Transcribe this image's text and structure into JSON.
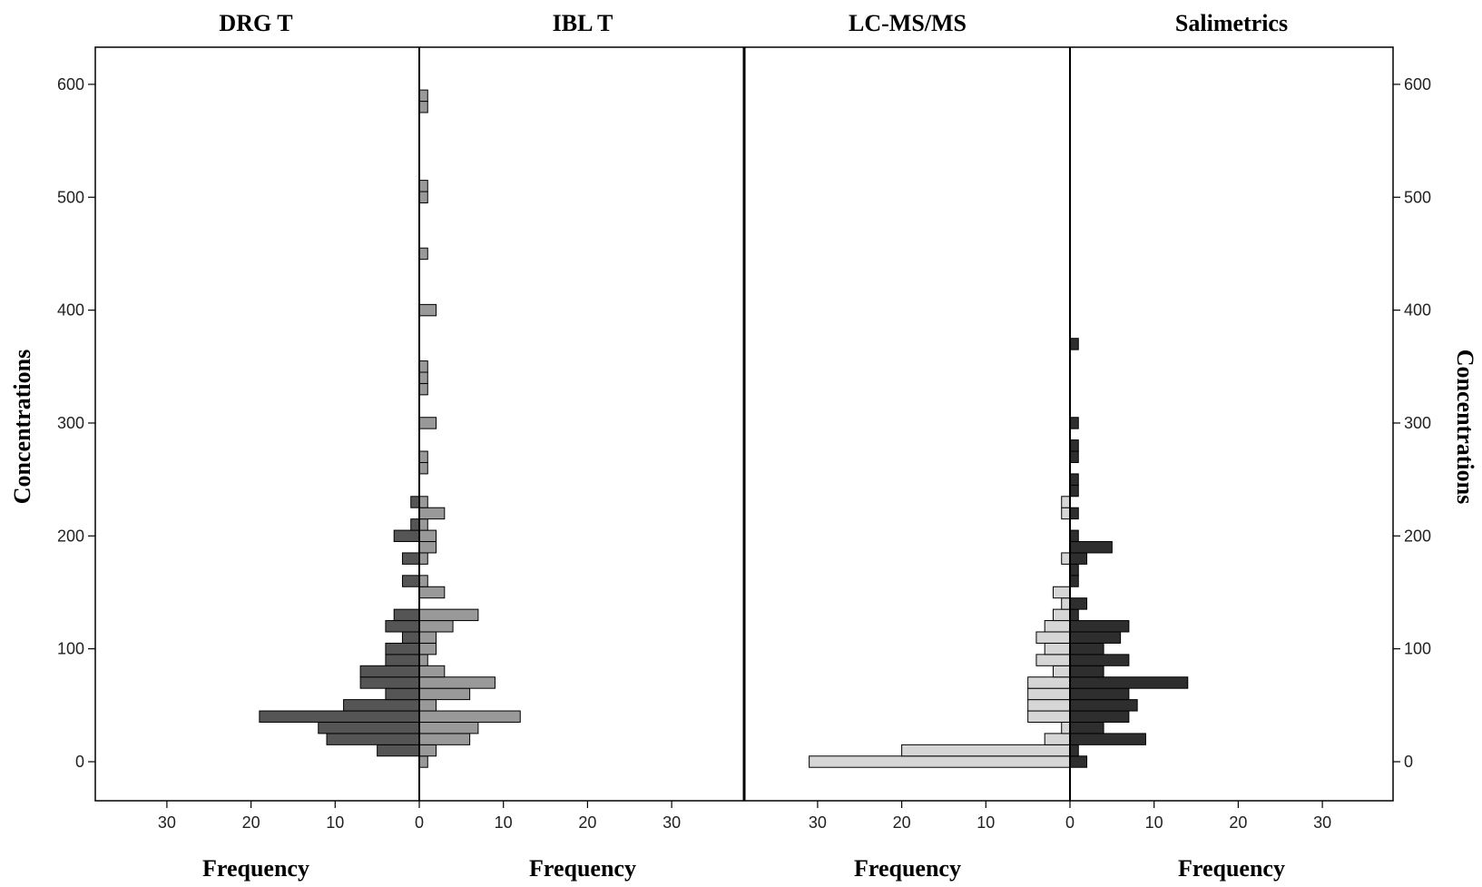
{
  "chart_data": {
    "type": "bar",
    "subtype": "back-to-back horizontal histogram (population pyramid)",
    "y_axis": {
      "label": "Concentrations",
      "ticks": [
        0,
        100,
        200,
        300,
        400,
        500,
        600
      ],
      "ylim": [
        -33,
        633
      ]
    },
    "x_axis": {
      "label": "Frequency",
      "ticks": [
        30,
        20,
        10,
        0,
        10,
        20,
        30
      ],
      "xlim_each_side": [
        0,
        39
      ]
    },
    "grid": false,
    "legend": "none",
    "bin_width": 10,
    "colors": {
      "DRG T": "#555555",
      "IBL T": "#999999",
      "LC-MS/MS": "#d6d6d6",
      "Salimetrics": "#2e2e2e",
      "outline": "#000000"
    },
    "panels": [
      {
        "left": {
          "name": "DRG T",
          "bins": [
            {
              "y": 0,
              "freq": 0
            },
            {
              "y": 10,
              "freq": 5
            },
            {
              "y": 20,
              "freq": 11
            },
            {
              "y": 30,
              "freq": 12
            },
            {
              "y": 40,
              "freq": 19
            },
            {
              "y": 50,
              "freq": 9
            },
            {
              "y": 60,
              "freq": 4
            },
            {
              "y": 70,
              "freq": 7
            },
            {
              "y": 80,
              "freq": 7
            },
            {
              "y": 90,
              "freq": 4
            },
            {
              "y": 100,
              "freq": 4
            },
            {
              "y": 110,
              "freq": 2
            },
            {
              "y": 120,
              "freq": 4
            },
            {
              "y": 130,
              "freq": 3
            },
            {
              "y": 160,
              "freq": 2
            },
            {
              "y": 180,
              "freq": 2
            },
            {
              "y": 200,
              "freq": 3
            },
            {
              "y": 210,
              "freq": 1
            },
            {
              "y": 230,
              "freq": 1
            }
          ]
        },
        "right": {
          "name": "IBL T",
          "bins": [
            {
              "y": 0,
              "freq": 1
            },
            {
              "y": 10,
              "freq": 2
            },
            {
              "y": 20,
              "freq": 6
            },
            {
              "y": 30,
              "freq": 7
            },
            {
              "y": 40,
              "freq": 12
            },
            {
              "y": 50,
              "freq": 2
            },
            {
              "y": 60,
              "freq": 6
            },
            {
              "y": 70,
              "freq": 9
            },
            {
              "y": 80,
              "freq": 3
            },
            {
              "y": 90,
              "freq": 1
            },
            {
              "y": 100,
              "freq": 2
            },
            {
              "y": 110,
              "freq": 2
            },
            {
              "y": 120,
              "freq": 4
            },
            {
              "y": 130,
              "freq": 7
            },
            {
              "y": 150,
              "freq": 3
            },
            {
              "y": 160,
              "freq": 1
            },
            {
              "y": 180,
              "freq": 1
            },
            {
              "y": 190,
              "freq": 2
            },
            {
              "y": 200,
              "freq": 2
            },
            {
              "y": 210,
              "freq": 1
            },
            {
              "y": 220,
              "freq": 3
            },
            {
              "y": 230,
              "freq": 1
            },
            {
              "y": 260,
              "freq": 1
            },
            {
              "y": 270,
              "freq": 1
            },
            {
              "y": 300,
              "freq": 2
            },
            {
              "y": 330,
              "freq": 1
            },
            {
              "y": 340,
              "freq": 1
            },
            {
              "y": 350,
              "freq": 1
            },
            {
              "y": 400,
              "freq": 2
            },
            {
              "y": 450,
              "freq": 1
            },
            {
              "y": 500,
              "freq": 1
            },
            {
              "y": 510,
              "freq": 1
            },
            {
              "y": 580,
              "freq": 1
            },
            {
              "y": 590,
              "freq": 1
            }
          ]
        }
      },
      {
        "left": {
          "name": "LC-MS/MS",
          "bins": [
            {
              "y": 0,
              "freq": 31
            },
            {
              "y": 10,
              "freq": 20
            },
            {
              "y": 20,
              "freq": 3
            },
            {
              "y": 30,
              "freq": 1
            },
            {
              "y": 40,
              "freq": 5
            },
            {
              "y": 50,
              "freq": 5
            },
            {
              "y": 60,
              "freq": 5
            },
            {
              "y": 70,
              "freq": 5
            },
            {
              "y": 80,
              "freq": 2
            },
            {
              "y": 90,
              "freq": 4
            },
            {
              "y": 100,
              "freq": 3
            },
            {
              "y": 110,
              "freq": 4
            },
            {
              "y": 120,
              "freq": 3
            },
            {
              "y": 130,
              "freq": 2
            },
            {
              "y": 140,
              "freq": 1
            },
            {
              "y": 150,
              "freq": 2
            },
            {
              "y": 180,
              "freq": 1
            },
            {
              "y": 220,
              "freq": 1
            },
            {
              "y": 230,
              "freq": 1
            }
          ]
        },
        "right": {
          "name": "Salimetrics",
          "bins": [
            {
              "y": 0,
              "freq": 2
            },
            {
              "y": 10,
              "freq": 1
            },
            {
              "y": 20,
              "freq": 9
            },
            {
              "y": 30,
              "freq": 4
            },
            {
              "y": 40,
              "freq": 7
            },
            {
              "y": 50,
              "freq": 8
            },
            {
              "y": 60,
              "freq": 7
            },
            {
              "y": 70,
              "freq": 14
            },
            {
              "y": 80,
              "freq": 4
            },
            {
              "y": 90,
              "freq": 7
            },
            {
              "y": 100,
              "freq": 4
            },
            {
              "y": 110,
              "freq": 6
            },
            {
              "y": 120,
              "freq": 7
            },
            {
              "y": 130,
              "freq": 1
            },
            {
              "y": 140,
              "freq": 2
            },
            {
              "y": 160,
              "freq": 1
            },
            {
              "y": 170,
              "freq": 1
            },
            {
              "y": 180,
              "freq": 2
            },
            {
              "y": 190,
              "freq": 5
            },
            {
              "y": 200,
              "freq": 1
            },
            {
              "y": 220,
              "freq": 1
            },
            {
              "y": 240,
              "freq": 1
            },
            {
              "y": 250,
              "freq": 1
            },
            {
              "y": 270,
              "freq": 1
            },
            {
              "y": 280,
              "freq": 1
            },
            {
              "y": 300,
              "freq": 1
            },
            {
              "y": 370,
              "freq": 1
            }
          ]
        }
      }
    ]
  }
}
